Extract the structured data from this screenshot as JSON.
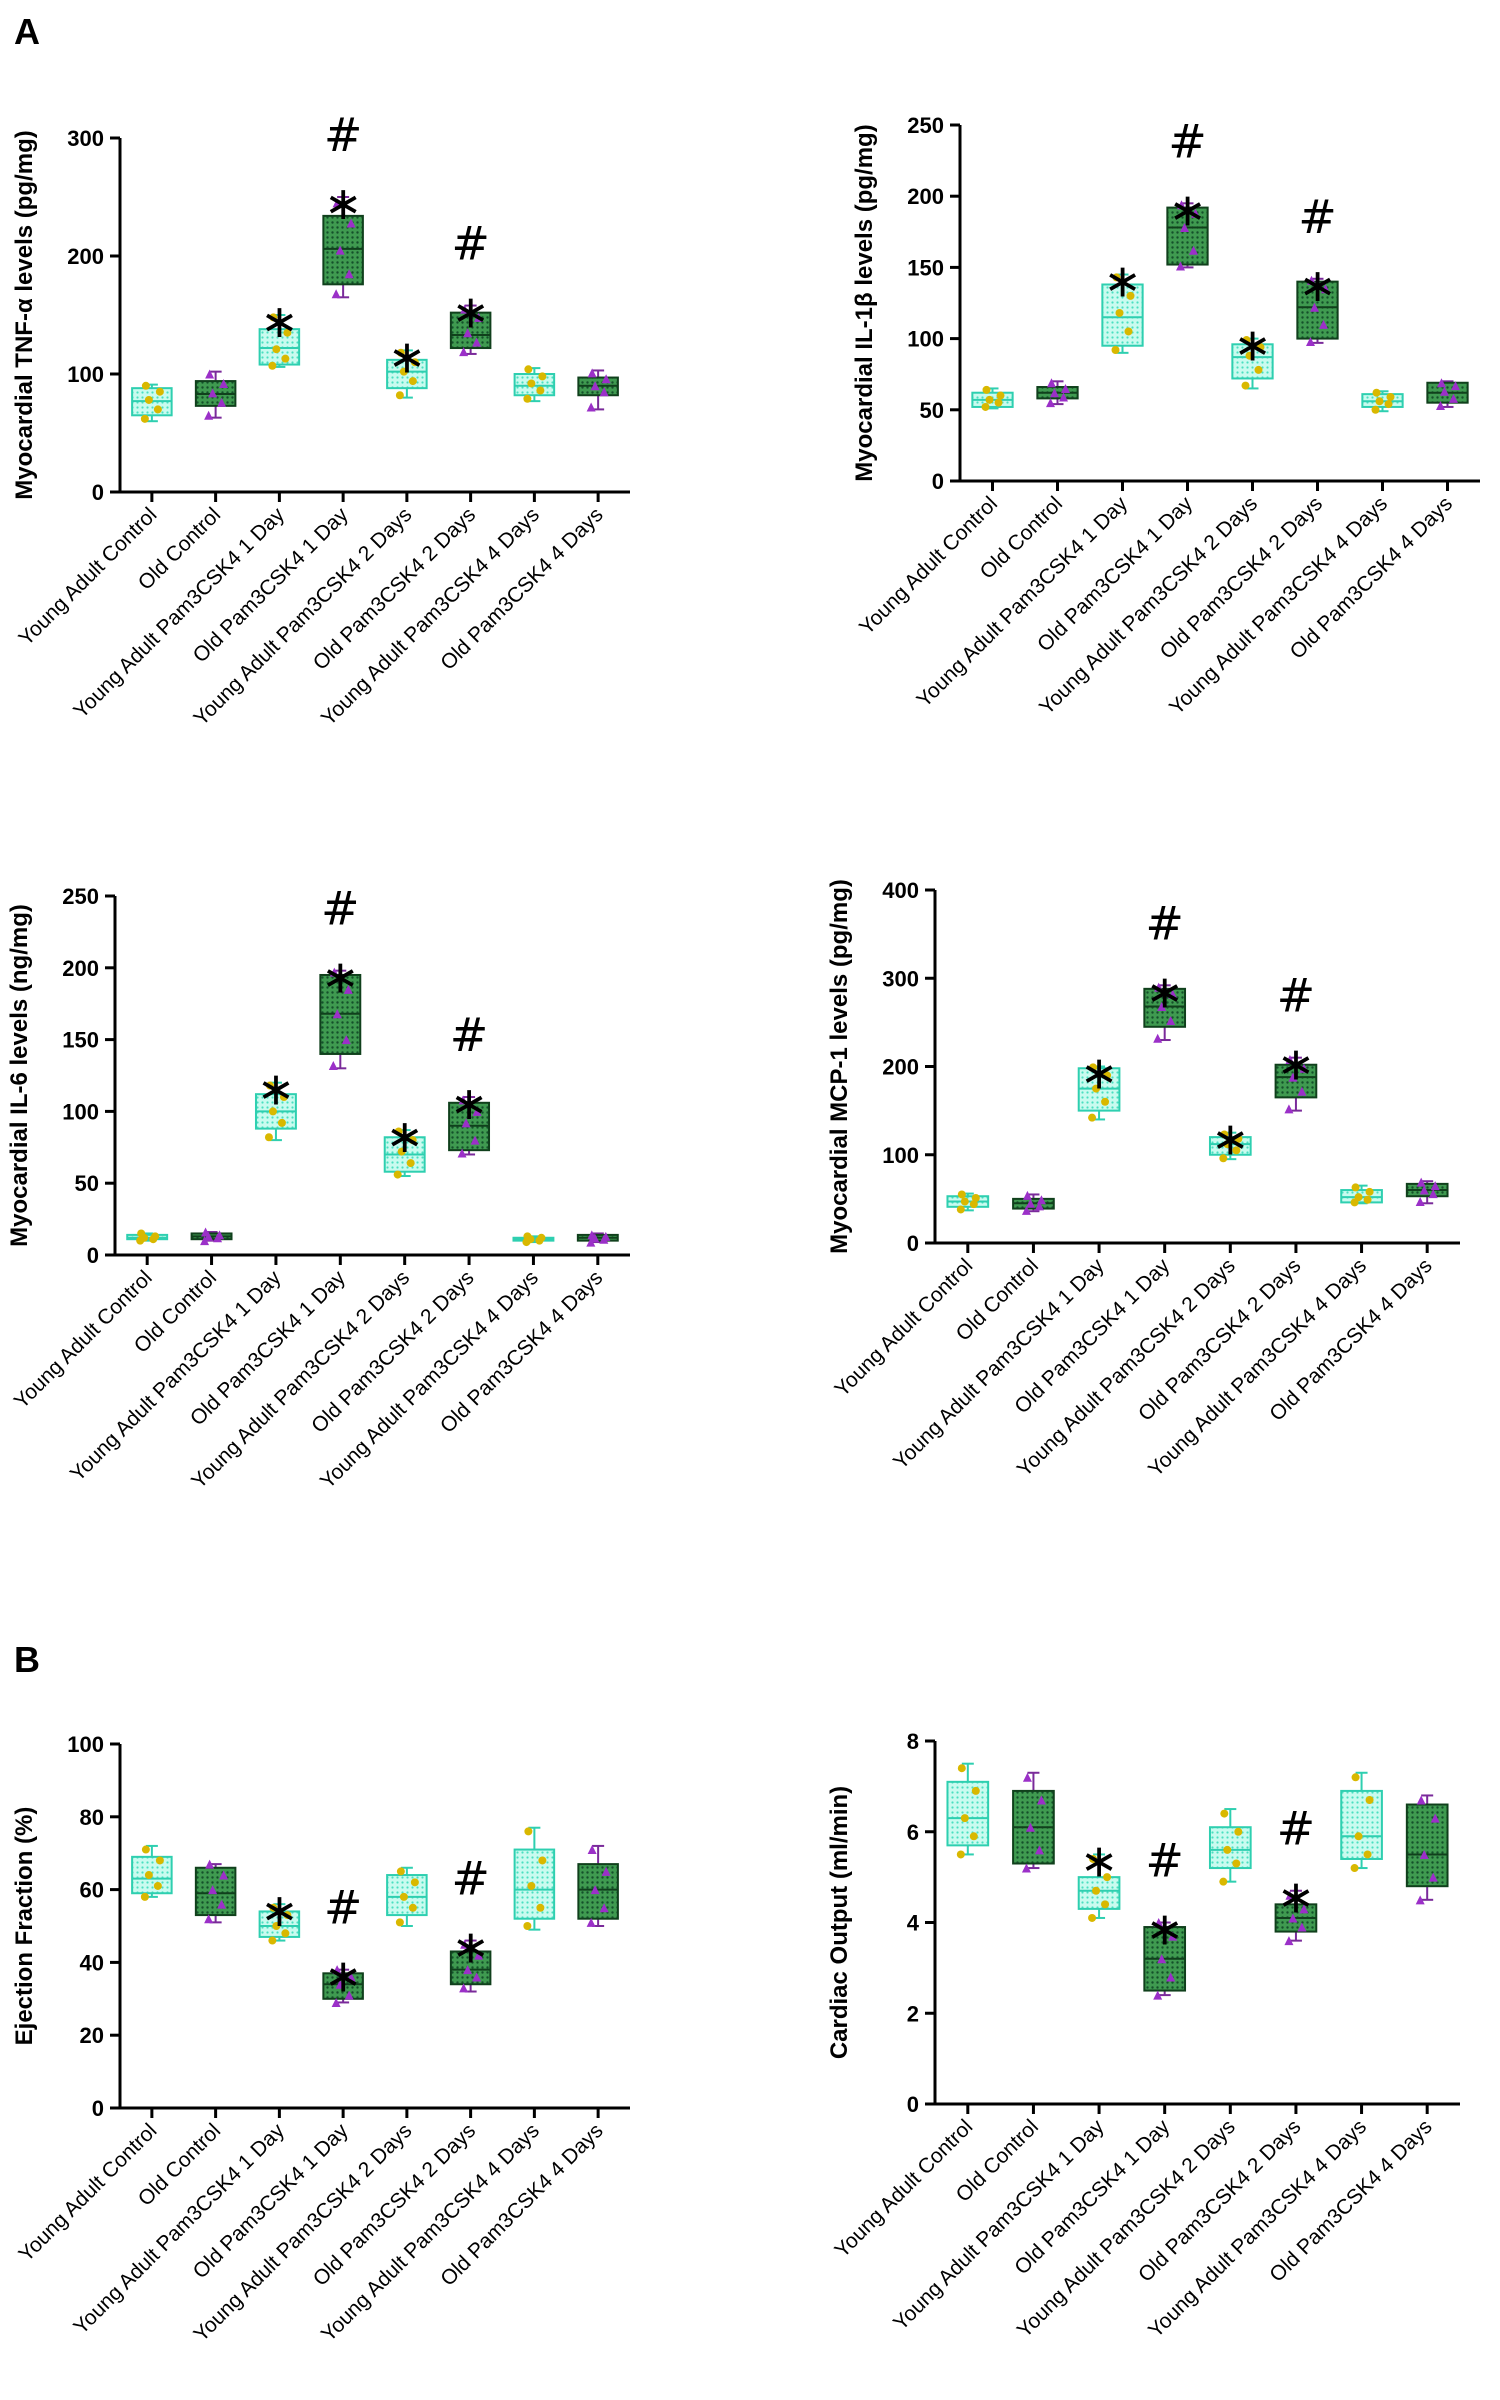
{
  "panel_labels": [
    "A",
    "B"
  ],
  "chart_data": [
    {
      "type": "box",
      "panel": "A",
      "ylabel": "Myocardial TNF-α levels (pg/mg)",
      "ylim": [
        0,
        300
      ],
      "yticks": [
        0,
        100,
        200,
        300
      ],
      "categories": [
        "Young Adult Control",
        "Old Control",
        "Young Adult Pam3CSK4 1 Day",
        "Old Pam3CSK4 1 Day",
        "Young Adult Pam3CSK4 2 Days",
        "Old Pam3CSK4 2 Days",
        "Young Adult Pam3CSK4 4 Days",
        "Old Pam3CSK4 4 Days"
      ],
      "boxes": [
        {
          "min": 60,
          "q1": 65,
          "median": 77,
          "q3": 88,
          "max": 91,
          "points": [
            62,
            70,
            78,
            85,
            90
          ]
        },
        {
          "min": 63,
          "q1": 73,
          "median": 83,
          "q3": 94,
          "max": 102,
          "points": [
            65,
            76,
            84,
            92,
            100
          ]
        },
        {
          "min": 106,
          "q1": 108,
          "median": 122,
          "q3": 138,
          "max": 150,
          "points": [
            107,
            113,
            121,
            135,
            148
          ]
        },
        {
          "min": 165,
          "q1": 176,
          "median": 206,
          "q3": 234,
          "max": 250,
          "points": [
            168,
            185,
            205,
            228,
            245
          ]
        },
        {
          "min": 80,
          "q1": 88,
          "median": 102,
          "q3": 112,
          "max": 120,
          "points": [
            82,
            94,
            102,
            110,
            118
          ]
        },
        {
          "min": 117,
          "q1": 122,
          "median": 133,
          "q3": 152,
          "max": 158,
          "points": [
            119,
            127,
            135,
            148,
            155
          ]
        },
        {
          "min": 77,
          "q1": 82,
          "median": 90,
          "q3": 100,
          "max": 105,
          "points": [
            79,
            86,
            92,
            98,
            104
          ]
        },
        {
          "min": 70,
          "q1": 82,
          "median": 90,
          "q3": 97,
          "max": 103,
          "points": [
            72,
            85,
            90,
            96,
            101
          ]
        }
      ],
      "annotations": [
        {
          "index": 2,
          "marks": "∗"
        },
        {
          "index": 3,
          "marks": "∗#"
        },
        {
          "index": 4,
          "marks": "∗"
        },
        {
          "index": 5,
          "marks": "∗#"
        }
      ]
    },
    {
      "type": "box",
      "panel": "A",
      "ylabel": "Myocardial IL-1β levels (pg/mg)",
      "ylim": [
        0,
        250
      ],
      "yticks": [
        0,
        50,
        100,
        150,
        200,
        250
      ],
      "categories": [
        "Young Adult Control",
        "Old Control",
        "Young Adult Pam3CSK4 1 Day",
        "Old Pam3CSK4 1 Day",
        "Young Adult Pam3CSK4 2 Days",
        "Old Pam3CSK4 2 Days",
        "Young Adult Pam3CSK4 4 Days",
        "Old Pam3CSK4 4 Days"
      ],
      "boxes": [
        {
          "min": 51,
          "q1": 52,
          "median": 57,
          "q3": 62,
          "max": 65,
          "points": [
            52,
            55,
            57,
            60,
            64
          ]
        },
        {
          "min": 54,
          "q1": 58,
          "median": 62,
          "q3": 66,
          "max": 70,
          "points": [
            55,
            59,
            62,
            65,
            69
          ]
        },
        {
          "min": 90,
          "q1": 95,
          "median": 115,
          "q3": 138,
          "max": 145,
          "points": [
            92,
            105,
            118,
            130,
            143
          ]
        },
        {
          "min": 150,
          "q1": 152,
          "median": 178,
          "q3": 192,
          "max": 195,
          "points": [
            151,
            162,
            178,
            188,
            194
          ]
        },
        {
          "min": 65,
          "q1": 72,
          "median": 87,
          "q3": 96,
          "max": 100,
          "points": [
            67,
            78,
            88,
            94,
            99
          ]
        },
        {
          "min": 97,
          "q1": 100,
          "median": 122,
          "q3": 140,
          "max": 142,
          "points": [
            98,
            110,
            122,
            135,
            141
          ]
        },
        {
          "min": 49,
          "q1": 52,
          "median": 56,
          "q3": 61,
          "max": 63,
          "points": [
            50,
            54,
            56,
            59,
            62
          ]
        },
        {
          "min": 52,
          "q1": 55,
          "median": 62,
          "q3": 69,
          "max": 70,
          "points": [
            53,
            58,
            63,
            67,
            69
          ]
        }
      ],
      "annotations": [
        {
          "index": 2,
          "marks": "∗"
        },
        {
          "index": 3,
          "marks": "∗#"
        },
        {
          "index": 4,
          "marks": "∗"
        },
        {
          "index": 5,
          "marks": "∗#"
        }
      ]
    },
    {
      "type": "box",
      "panel": "A",
      "ylabel": "Myocardial IL-6 levels (ng/mg)",
      "ylim": [
        0,
        250
      ],
      "yticks": [
        0,
        50,
        100,
        150,
        200,
        250
      ],
      "categories": [
        "Young Adult Control",
        "Old Control",
        "Young Adult Pam3CSK4 1 Day",
        "Old Pam3CSK4 1 Day",
        "Young Adult Pam3CSK4 2 Days",
        "Old Pam3CSK4 2 Days",
        "Young Adult Pam3CSK4 4 Days",
        "Old Pam3CSK4 4 Days"
      ],
      "boxes": [
        {
          "min": 10,
          "q1": 11,
          "median": 12,
          "q3": 14,
          "max": 15,
          "points": [
            10,
            11,
            12,
            13,
            15
          ]
        },
        {
          "min": 10,
          "q1": 11,
          "median": 13,
          "q3": 15,
          "max": 16,
          "points": [
            10,
            12,
            13,
            14,
            16
          ]
        },
        {
          "min": 80,
          "q1": 88,
          "median": 100,
          "q3": 112,
          "max": 120,
          "points": [
            82,
            92,
            100,
            110,
            118
          ]
        },
        {
          "min": 130,
          "q1": 140,
          "median": 168,
          "q3": 195,
          "max": 198,
          "points": [
            132,
            150,
            168,
            185,
            197
          ]
        },
        {
          "min": 55,
          "q1": 58,
          "median": 70,
          "q3": 82,
          "max": 87,
          "points": [
            56,
            64,
            72,
            80,
            86
          ]
        },
        {
          "min": 70,
          "q1": 73,
          "median": 90,
          "q3": 106,
          "max": 110,
          "points": [
            71,
            80,
            92,
            100,
            108
          ]
        },
        {
          "min": 9,
          "q1": 10,
          "median": 11,
          "q3": 12,
          "max": 13,
          "points": [
            9,
            10,
            11,
            12,
            13
          ]
        },
        {
          "min": 9,
          "q1": 10,
          "median": 12,
          "q3": 14,
          "max": 15,
          "points": [
            9,
            11,
            12,
            13,
            14
          ]
        }
      ],
      "annotations": [
        {
          "index": 2,
          "marks": "∗"
        },
        {
          "index": 3,
          "marks": "∗#"
        },
        {
          "index": 4,
          "marks": "∗"
        },
        {
          "index": 5,
          "marks": "∗#"
        }
      ]
    },
    {
      "type": "box",
      "panel": "A",
      "ylabel": "Myocardial MCP-1 levels (pg/mg)",
      "ylim": [
        0,
        400
      ],
      "yticks": [
        0,
        100,
        200,
        300,
        400
      ],
      "categories": [
        "Young Adult Control",
        "Old Control",
        "Young Adult Pam3CSK4 1 Day",
        "Old Pam3CSK4 1 Day",
        "Young Adult Pam3CSK4 2 Days",
        "Old Pam3CSK4 2 Days",
        "Young Adult Pam3CSK4 4 Days",
        "Old Pam3CSK4 4 Days"
      ],
      "boxes": [
        {
          "min": 37,
          "q1": 41,
          "median": 47,
          "q3": 53,
          "max": 56,
          "points": [
            38,
            44,
            47,
            51,
            55
          ]
        },
        {
          "min": 36,
          "q1": 39,
          "median": 45,
          "q3": 50,
          "max": 55,
          "points": [
            37,
            42,
            45,
            49,
            54
          ]
        },
        {
          "min": 140,
          "q1": 150,
          "median": 175,
          "q3": 198,
          "max": 200,
          "points": [
            142,
            160,
            175,
            190,
            199
          ]
        },
        {
          "min": 230,
          "q1": 245,
          "median": 268,
          "q3": 288,
          "max": 292,
          "points": [
            232,
            252,
            268,
            282,
            290
          ]
        },
        {
          "min": 95,
          "q1": 100,
          "median": 112,
          "q3": 120,
          "max": 125,
          "points": [
            96,
            105,
            112,
            118,
            123
          ]
        },
        {
          "min": 150,
          "q1": 165,
          "median": 188,
          "q3": 202,
          "max": 210,
          "points": [
            152,
            172,
            188,
            198,
            208
          ]
        },
        {
          "min": 45,
          "q1": 46,
          "median": 52,
          "q3": 60,
          "max": 65,
          "points": [
            46,
            49,
            52,
            58,
            63
          ]
        },
        {
          "min": 45,
          "q1": 53,
          "median": 60,
          "q3": 67,
          "max": 70,
          "points": [
            47,
            56,
            60,
            65,
            69
          ]
        }
      ],
      "annotations": [
        {
          "index": 2,
          "marks": "∗"
        },
        {
          "index": 3,
          "marks": "∗#"
        },
        {
          "index": 4,
          "marks": "∗"
        },
        {
          "index": 5,
          "marks": "∗#"
        }
      ]
    },
    {
      "type": "box",
      "panel": "B",
      "ylabel": "Ejection Fraction (%)",
      "ylim": [
        0,
        100
      ],
      "yticks": [
        0,
        20,
        40,
        60,
        80,
        100
      ],
      "categories": [
        "Young Adult Control",
        "Old Control",
        "Young Adult Pam3CSK4 1 Day",
        "Old Pam3CSK4 1 Day",
        "Young Adult Pam3CSK4 2 Days",
        "Old Pam3CSK4 2 Days",
        "Young Adult Pam3CSK4 4 Days",
        "Old Pam3CSK4 4 Days"
      ],
      "boxes": [
        {
          "min": 58,
          "q1": 59,
          "median": 63,
          "q3": 69,
          "max": 72,
          "points": [
            58,
            61,
            64,
            68,
            71
          ]
        },
        {
          "min": 51,
          "q1": 53,
          "median": 59,
          "q3": 66,
          "max": 67,
          "points": [
            52,
            56,
            60,
            64,
            67
          ]
        },
        {
          "min": 46,
          "q1": 47,
          "median": 50,
          "q3": 54,
          "max": 56,
          "points": [
            46,
            48,
            50,
            53,
            55
          ]
        },
        {
          "min": 29,
          "q1": 30,
          "median": 34,
          "q3": 37,
          "max": 38,
          "points": [
            29,
            31,
            34,
            36,
            38
          ]
        },
        {
          "min": 50,
          "q1": 53,
          "median": 58,
          "q3": 64,
          "max": 66,
          "points": [
            51,
            55,
            58,
            62,
            65
          ]
        },
        {
          "min": 32,
          "q1": 34,
          "median": 38,
          "q3": 43,
          "max": 46,
          "points": [
            33,
            36,
            38,
            42,
            45
          ]
        },
        {
          "min": 49,
          "q1": 52,
          "median": 60,
          "q3": 71,
          "max": 77,
          "points": [
            50,
            55,
            61,
            68,
            76
          ]
        },
        {
          "min": 50,
          "q1": 52,
          "median": 60,
          "q3": 67,
          "max": 72,
          "points": [
            51,
            55,
            60,
            65,
            71
          ]
        }
      ],
      "annotations": [
        {
          "index": 2,
          "marks": "∗"
        },
        {
          "index": 3,
          "marks": "∗#"
        },
        {
          "index": 5,
          "marks": "∗#"
        }
      ]
    },
    {
      "type": "box",
      "panel": "B",
      "ylabel": "Cardiac Output (ml/min)",
      "ylim": [
        0,
        8
      ],
      "yticks": [
        0,
        2,
        4,
        6,
        8
      ],
      "categories": [
        "Young Adult Control",
        "Old Control",
        "Young Adult Pam3CSK4 1 Day",
        "Old Pam3CSK4 1 Day",
        "Young Adult Pam3CSK4 2 Days",
        "Old Pam3CSK4 2 Days",
        "Young Adult Pam3CSK4 4 Days",
        "Old Pam3CSK4 4 Days"
      ],
      "boxes": [
        {
          "min": 5.5,
          "q1": 5.7,
          "median": 6.3,
          "q3": 7.1,
          "max": 7.5,
          "points": [
            5.5,
            5.9,
            6.3,
            6.9,
            7.4
          ]
        },
        {
          "min": 5.2,
          "q1": 5.3,
          "median": 6.1,
          "q3": 6.9,
          "max": 7.3,
          "points": [
            5.2,
            5.6,
            6.1,
            6.7,
            7.2
          ]
        },
        {
          "min": 4.1,
          "q1": 4.3,
          "median": 4.7,
          "q3": 5.0,
          "max": 5.5,
          "points": [
            4.1,
            4.4,
            4.7,
            5.0,
            5.4
          ]
        },
        {
          "min": 2.4,
          "q1": 2.5,
          "median": 3.2,
          "q3": 3.9,
          "max": 4.0,
          "points": [
            2.4,
            2.8,
            3.2,
            3.7,
            4.0
          ]
        },
        {
          "min": 4.9,
          "q1": 5.2,
          "median": 5.6,
          "q3": 6.1,
          "max": 6.5,
          "points": [
            4.9,
            5.3,
            5.6,
            6.0,
            6.4
          ]
        },
        {
          "min": 3.6,
          "q1": 3.8,
          "median": 4.1,
          "q3": 4.4,
          "max": 4.7,
          "points": [
            3.6,
            3.9,
            4.1,
            4.3,
            4.6
          ]
        },
        {
          "min": 5.2,
          "q1": 5.4,
          "median": 5.9,
          "q3": 6.9,
          "max": 7.3,
          "points": [
            5.2,
            5.5,
            5.9,
            6.7,
            7.2
          ]
        },
        {
          "min": 4.5,
          "q1": 4.8,
          "median": 5.5,
          "q3": 6.6,
          "max": 6.8,
          "points": [
            4.5,
            5.0,
            5.5,
            6.3,
            6.7
          ]
        }
      ],
      "annotations": [
        {
          "index": 2,
          "marks": "∗"
        },
        {
          "index": 3,
          "marks": "∗#"
        },
        {
          "index": 5,
          "marks": "∗#"
        }
      ]
    }
  ],
  "colors": {
    "light_fill": "#7ff3d9",
    "light_stroke": "#2ecfb0",
    "dark_fill": "#2b8a3e",
    "dark_stroke": "#10401c",
    "point_yellow": "#d9b800",
    "point_purple": "#9b30c8",
    "axis": "#000000"
  }
}
